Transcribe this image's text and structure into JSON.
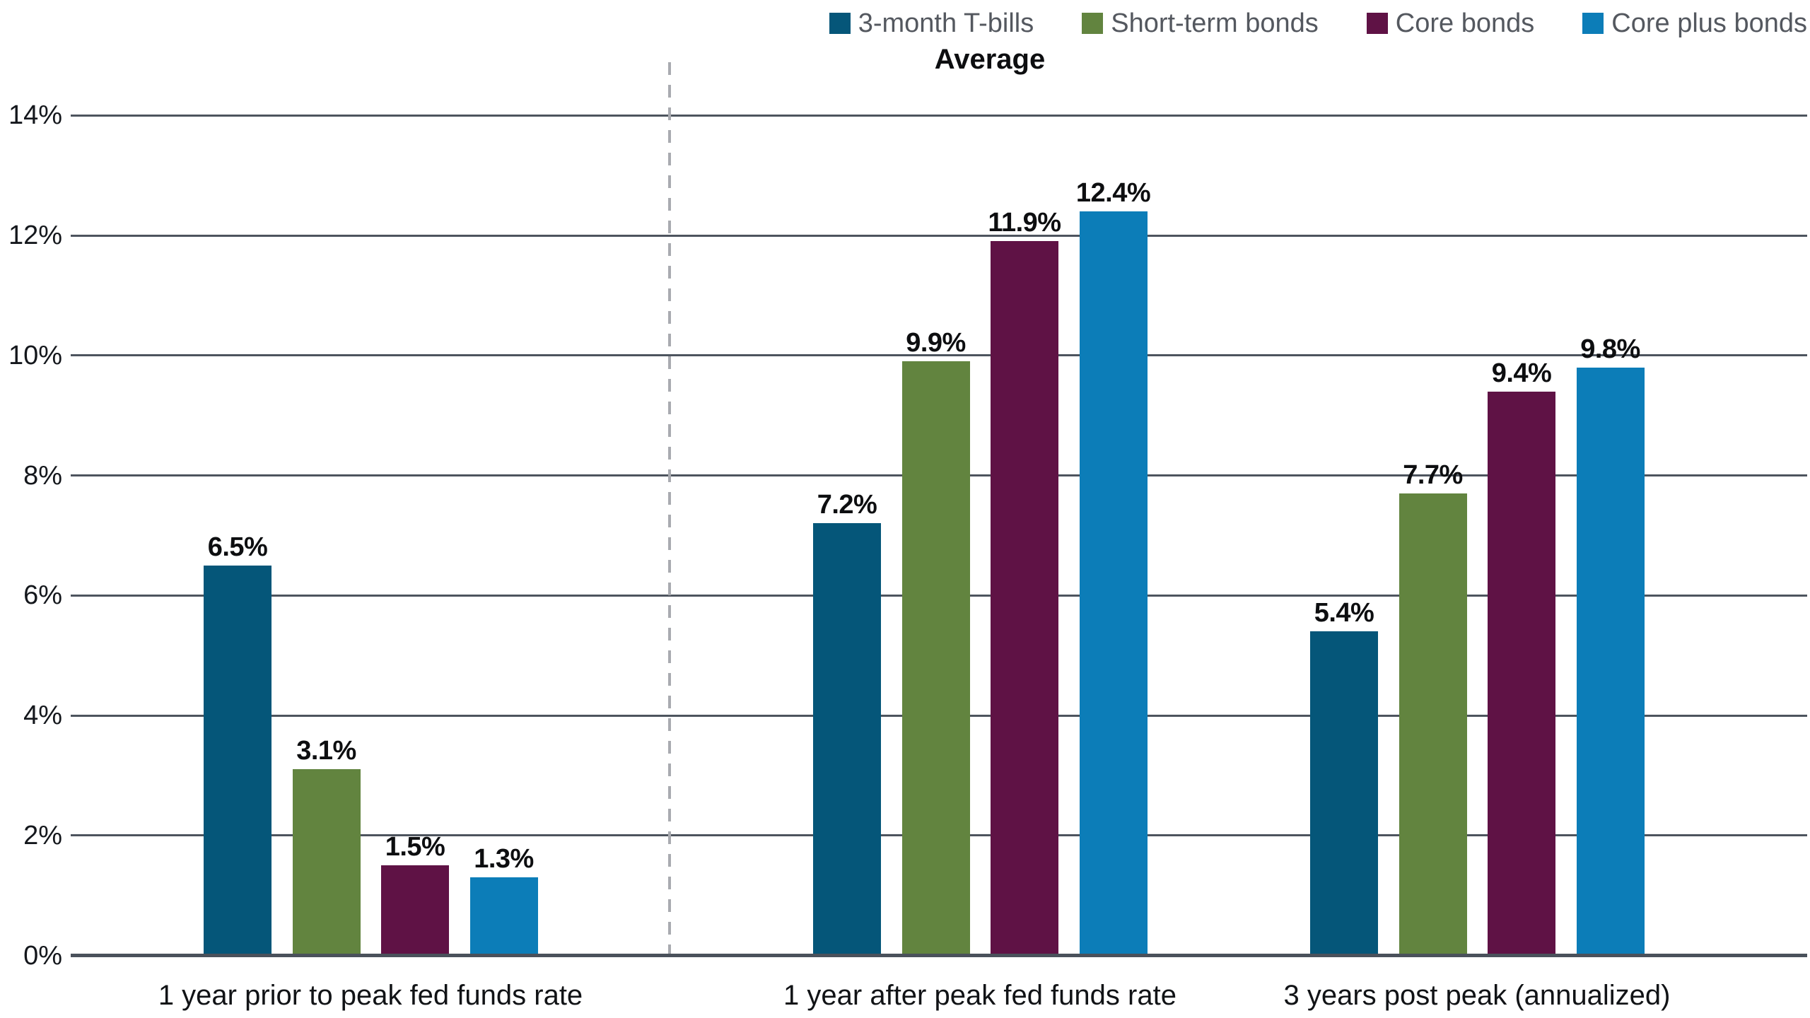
{
  "chart_data": {
    "type": "bar",
    "title": "Average",
    "categories": [
      "1 year prior to peak fed funds rate",
      "1 year after peak fed funds rate",
      "3 years post peak (annualized)"
    ],
    "series": [
      {
        "name": "3-month T-bills",
        "color": "#055679",
        "values": [
          6.5,
          7.2,
          5.4
        ],
        "value_labels": [
          "6.5%",
          "7.2%",
          "5.4%"
        ]
      },
      {
        "name": "Short-term bonds",
        "color": "#62843F",
        "values": [
          3.1,
          9.9,
          7.7
        ],
        "value_labels": [
          "3.1%",
          "9.9%",
          "7.7%"
        ]
      },
      {
        "name": "Core bonds",
        "color": "#5F1245",
        "values": [
          1.5,
          11.9,
          9.4
        ],
        "value_labels": [
          "1.5%",
          "11.9%",
          "9.4%"
        ]
      },
      {
        "name": "Core plus bonds",
        "color": "#0C7DB8",
        "values": [
          1.3,
          12.4,
          9.8
        ],
        "value_labels": [
          "1.3%",
          "12.4%",
          "9.8%"
        ]
      }
    ],
    "ylim": [
      0,
      14
    ],
    "ytick_step": 2,
    "ytick_labels": [
      "0%",
      "2%",
      "4%",
      "6%",
      "8%",
      "10%",
      "12%",
      "14%"
    ],
    "grid": true,
    "legend_position": "top-right",
    "separator": {
      "after_category_index": 0,
      "style": "dashed"
    }
  },
  "colors": {
    "gridline": "#4d545e",
    "axis_line": "#4a515b",
    "separator": "#a9abb0",
    "tick_label": "#14171c",
    "category_label": "#111316",
    "value_label": "#0d0e10",
    "legend_label": "#54585f",
    "title": "#0d0e10",
    "background": "#ffffff"
  }
}
